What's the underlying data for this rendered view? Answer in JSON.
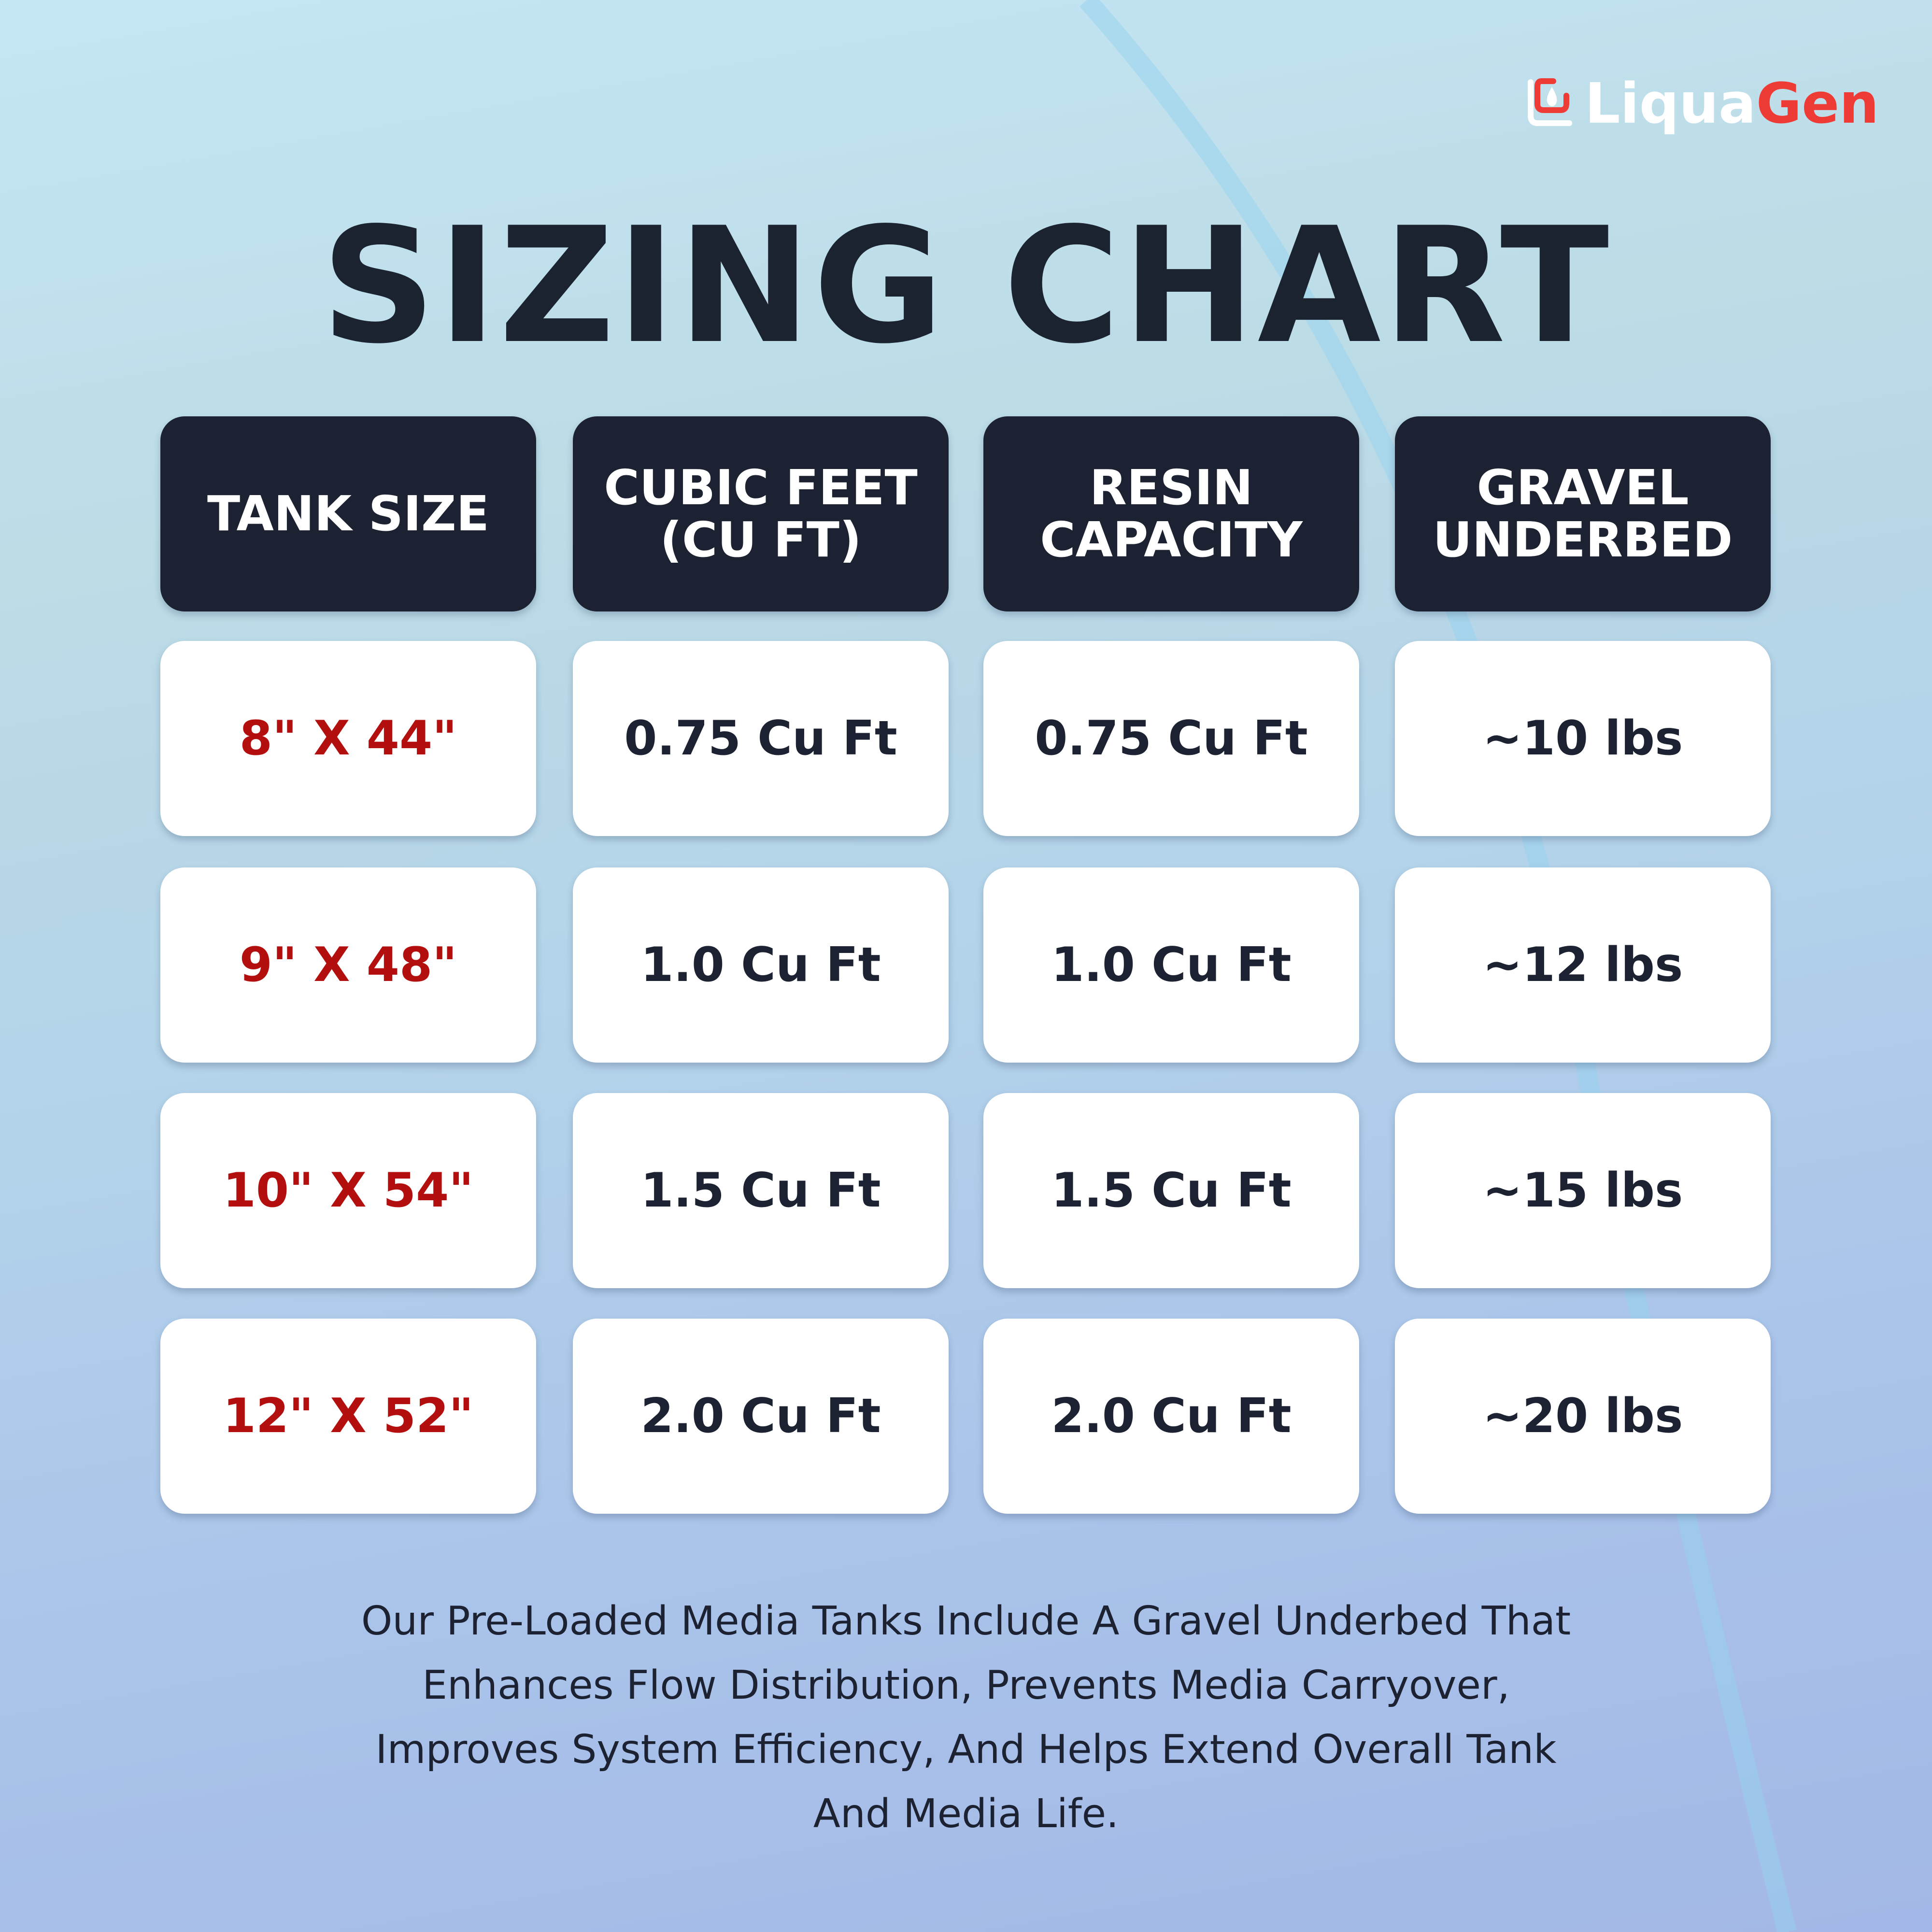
{
  "brand": {
    "name_part1": "Liqua",
    "name_part2": "Gen",
    "colors": {
      "primary": "#ee3b36",
      "secondary": "#ffffff"
    }
  },
  "title": "SIZING CHART",
  "table": {
    "headers": [
      "TANK SIZE",
      "CUBIC FEET (CU FT)",
      "RESIN CAPACITY",
      "GRAVEL UNDERBED"
    ],
    "rows": [
      [
        "8\" X 44\"",
        "0.75 Cu Ft",
        "0.75 Cu Ft",
        "~10 lbs"
      ],
      [
        "9\" X 48\"",
        "1.0 Cu Ft",
        "1.0 Cu Ft",
        "~12 lbs"
      ],
      [
        "10\" X 54\"",
        "1.5 Cu Ft",
        "1.5 Cu Ft",
        "~15 lbs"
      ],
      [
        "12\" X 52\"",
        "2.0 Cu Ft",
        "2.0 Cu Ft",
        "~20 lbs"
      ]
    ]
  },
  "note": "Our Pre-Loaded Media Tanks Include A Gravel Underbed That Enhances Flow Distribution, Prevents Media Carryover, Improves System Efficiency, And Helps Extend Overall Tank And Media Life."
}
